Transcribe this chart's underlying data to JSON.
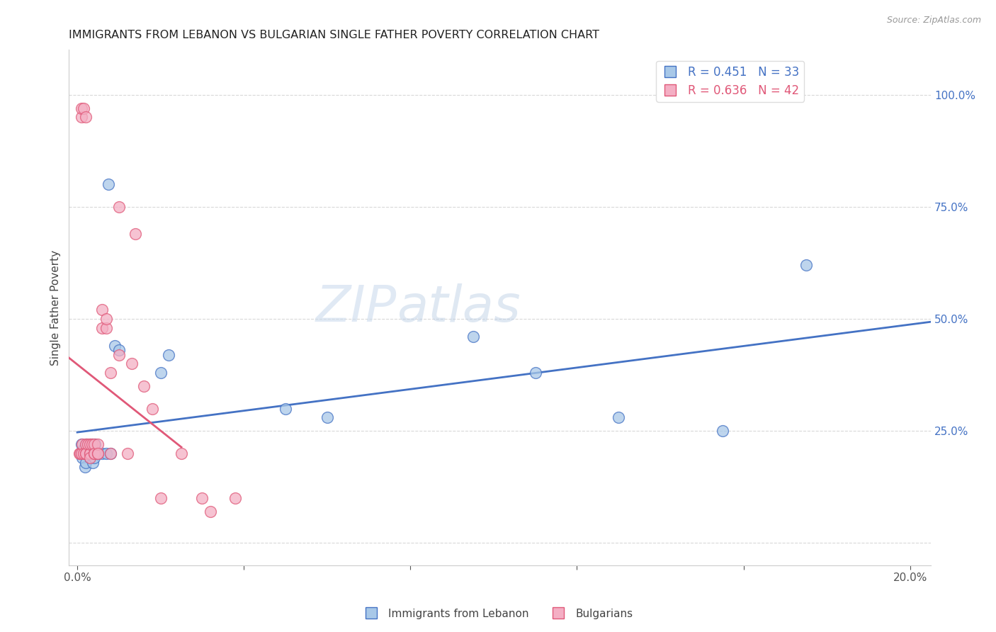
{
  "title": "IMMIGRANTS FROM LEBANON VS BULGARIAN SINGLE FATHER POVERTY CORRELATION CHART",
  "source": "Source: ZipAtlas.com",
  "ylabel": "Single Father Poverty",
  "blue_color": "#a8c8e8",
  "pink_color": "#f4afc4",
  "blue_line_color": "#4472c4",
  "pink_line_color": "#e05878",
  "pink_dash_color": "#e0a0b4",
  "watermark_zip": "ZIP",
  "watermark_atlas": "atlas",
  "legend_items": [
    {
      "label": "R = 0.451   N = 33",
      "color": "#4472c4",
      "fc": "#a8c8e8"
    },
    {
      "label": "R = 0.636   N = 42",
      "color": "#e05878",
      "fc": "#f4afc4"
    }
  ],
  "bottom_legend": [
    {
      "label": "Immigrants from Lebanon",
      "color": "#4472c4",
      "fc": "#a8c8e8"
    },
    {
      "label": "Bulgarians",
      "color": "#e05878",
      "fc": "#f4afc4"
    }
  ],
  "lebanon_x": [
    0.0008,
    0.001,
    0.0012,
    0.0015,
    0.0018,
    0.002,
    0.002,
    0.0022,
    0.0025,
    0.003,
    0.003,
    0.003,
    0.0035,
    0.0038,
    0.004,
    0.004,
    0.0042,
    0.005,
    0.006,
    0.007,
    0.0075,
    0.008,
    0.009,
    0.01,
    0.02,
    0.022,
    0.05,
    0.06,
    0.095,
    0.11,
    0.13,
    0.155,
    0.175
  ],
  "lebanon_y": [
    0.2,
    0.22,
    0.19,
    0.21,
    0.17,
    0.2,
    0.18,
    0.22,
    0.2,
    0.2,
    0.22,
    0.19,
    0.22,
    0.18,
    0.2,
    0.19,
    0.22,
    0.2,
    0.2,
    0.2,
    0.8,
    0.2,
    0.44,
    0.43,
    0.38,
    0.42,
    0.3,
    0.28,
    0.46,
    0.38,
    0.28,
    0.25,
    0.62
  ],
  "bulgarian_x": [
    0.0005,
    0.0007,
    0.001,
    0.001,
    0.001,
    0.0012,
    0.0015,
    0.0015,
    0.002,
    0.002,
    0.002,
    0.002,
    0.0025,
    0.003,
    0.003,
    0.003,
    0.003,
    0.0035,
    0.004,
    0.004,
    0.004,
    0.005,
    0.005,
    0.005,
    0.006,
    0.006,
    0.007,
    0.007,
    0.008,
    0.008,
    0.01,
    0.01,
    0.012,
    0.013,
    0.014,
    0.016,
    0.018,
    0.02,
    0.025,
    0.03,
    0.032,
    0.038
  ],
  "bulgarian_y": [
    0.2,
    0.2,
    0.95,
    0.97,
    0.2,
    0.22,
    0.97,
    0.2,
    0.2,
    0.22,
    0.95,
    0.2,
    0.22,
    0.2,
    0.2,
    0.22,
    0.19,
    0.22,
    0.2,
    0.22,
    0.2,
    0.2,
    0.22,
    0.2,
    0.48,
    0.52,
    0.48,
    0.5,
    0.38,
    0.2,
    0.42,
    0.75,
    0.2,
    0.4,
    0.69,
    0.35,
    0.3,
    0.1,
    0.2,
    0.1,
    0.07,
    0.1
  ],
  "xlim": [
    -0.002,
    0.205
  ],
  "ylim": [
    -0.05,
    1.1
  ],
  "x_ticks": [
    0.0,
    0.04,
    0.08,
    0.12,
    0.16,
    0.2
  ],
  "y_ticks": [
    0.0,
    0.25,
    0.5,
    0.75,
    1.0
  ],
  "y_tick_labels": [
    "",
    "25.0%",
    "50.0%",
    "75.0%",
    "100.0%"
  ]
}
